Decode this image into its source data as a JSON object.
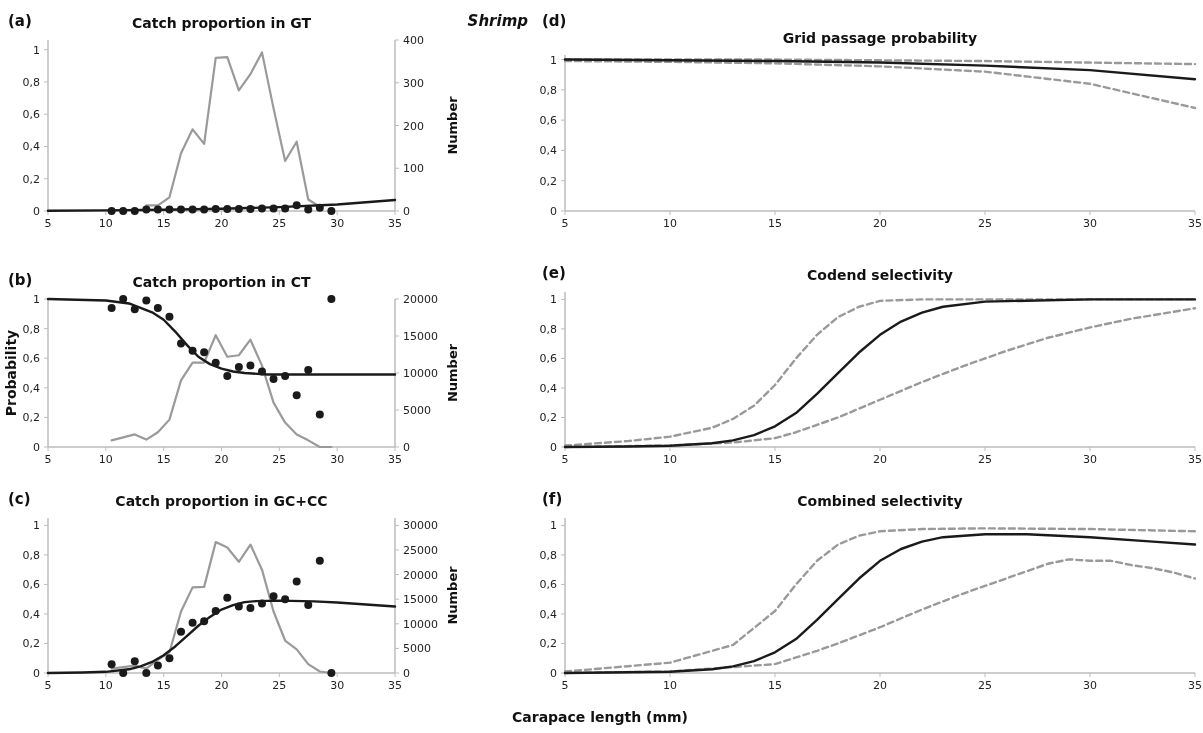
{
  "chart_data": [
    {
      "type": "line",
      "title": "Catch proportion in GT",
      "y2label": "Number",
      "annotations": [
        "(a)"
      ],
      "xlim": [
        5,
        35
      ],
      "xticks": [
        5,
        10,
        15,
        20,
        25,
        30,
        35
      ],
      "ylim": [
        0,
        1.06
      ],
      "yticks": [
        {
          "value": 0,
          "label": "0"
        },
        {
          "value": 0.2,
          "label": "0,2"
        },
        {
          "value": 0.4,
          "label": "0,4"
        },
        {
          "value": 0.6,
          "label": "0,6"
        },
        {
          "value": 0.8,
          "label": "0,8"
        },
        {
          "value": 1,
          "label": "1"
        }
      ],
      "y2lim": [
        0,
        400
      ],
      "y2ticks": [
        0,
        100,
        200,
        300,
        400
      ],
      "series": [
        {
          "axis": "y2",
          "color": "#9a9a9a",
          "x": [
            13.5,
            14.5,
            15.5,
            16.5,
            17.5,
            18.5,
            19.5,
            20.5,
            21.5,
            22.5,
            23.5,
            24.5,
            25.5,
            26.5,
            27.5,
            28.5
          ],
          "values": [
            13,
            13,
            32,
            135,
            191,
            157,
            358,
            360,
            282,
            320,
            371,
            240,
            117,
            162,
            27,
            10
          ]
        },
        {
          "type": "scatter",
          "marker": "circle",
          "color": "#1a1a1a",
          "x": [
            10.5,
            11.5,
            12.5,
            13.5,
            14.5,
            15.5,
            16.5,
            17.5,
            18.5,
            19.5,
            20.5,
            21.5,
            22.5,
            23.5,
            24.5,
            25.5,
            26.5,
            27.5,
            28.5,
            29.5
          ],
          "values": [
            0,
            0,
            0,
            0.01,
            0.01,
            0.01,
            0.01,
            0.01,
            0.01,
            0.012,
            0.012,
            0.012,
            0.012,
            0.015,
            0.015,
            0.015,
            0.035,
            0.01,
            0.02,
            0
          ]
        },
        {
          "color": "#1a1a1a",
          "x": [
            5,
            10,
            15,
            20,
            25,
            30,
            35
          ],
          "values": [
            0.002,
            0.004,
            0.008,
            0.014,
            0.024,
            0.04,
            0.068
          ]
        }
      ]
    },
    {
      "type": "line",
      "title": "Catch proportion in CT",
      "ylabel": "Probability",
      "y2label": "Number",
      "annotations": [
        "(b)"
      ],
      "xlim": [
        5,
        35
      ],
      "xticks": [
        5,
        10,
        15,
        20,
        25,
        30,
        35
      ],
      "ylim": [
        0,
        1
      ],
      "yticks": [
        {
          "value": 0,
          "label": "0"
        },
        {
          "value": 0.2,
          "label": "0,2"
        },
        {
          "value": 0.4,
          "label": "0,4"
        },
        {
          "value": 0.6,
          "label": "0,6"
        },
        {
          "value": 0.8,
          "label": "0,8"
        },
        {
          "value": 1,
          "label": "1"
        }
      ],
      "y2lim": [
        0,
        20000
      ],
      "y2ticks": [
        0,
        5000,
        10000,
        15000,
        20000
      ],
      "series": [
        {
          "axis": "y2",
          "color": "#9a9a9a",
          "x": [
            10.5,
            11.5,
            12.5,
            13.5,
            14.5,
            15.5,
            16.5,
            17.5,
            18.5,
            19.5,
            20.5,
            21.5,
            22.5,
            23.5,
            24.5,
            25.5,
            26.5,
            27.5,
            28.5,
            29.5
          ],
          "values": [
            900,
            1300,
            1700,
            1000,
            2000,
            3700,
            9000,
            11400,
            11400,
            15100,
            12200,
            12400,
            14500,
            11000,
            6000,
            3300,
            1700,
            900,
            0,
            0
          ]
        },
        {
          "type": "scatter",
          "marker": "circle",
          "color": "#1a1a1a",
          "x": [
            10.5,
            11.5,
            12.5,
            13.5,
            14.5,
            15.5,
            16.5,
            17.5,
            18.5,
            19.5,
            20.5,
            21.5,
            22.5,
            23.5,
            24.5,
            25.5,
            26.5,
            27.5,
            28.5,
            29.5
          ],
          "values": [
            0.94,
            1,
            0.93,
            0.99,
            0.94,
            0.88,
            0.7,
            0.65,
            0.64,
            0.57,
            0.48,
            0.54,
            0.55,
            0.51,
            0.46,
            0.48,
            0.35,
            0.52,
            0.22,
            1
          ]
        },
        {
          "color": "#1a1a1a",
          "x": [
            5,
            10,
            12,
            14,
            15,
            16,
            17,
            18,
            19,
            20,
            21,
            22,
            24,
            35
          ],
          "values": [
            1,
            0.99,
            0.97,
            0.91,
            0.86,
            0.78,
            0.69,
            0.61,
            0.56,
            0.53,
            0.51,
            0.5,
            0.49,
            0.49
          ]
        }
      ]
    },
    {
      "type": "line",
      "title": "Catch proportion in GC+CC",
      "xlabel": "Carapace length (mm)",
      "y2label": "Number",
      "annotations": [
        "(c)"
      ],
      "xlim": [
        5,
        35
      ],
      "xticks": [
        5,
        10,
        15,
        20,
        25,
        30,
        35
      ],
      "ylim": [
        0,
        1.05
      ],
      "yticks": [
        {
          "value": 0,
          "label": "0"
        },
        {
          "value": 0.2,
          "label": "0,2"
        },
        {
          "value": 0.4,
          "label": "0,4"
        },
        {
          "value": 0.6,
          "label": "0,6"
        },
        {
          "value": 0.8,
          "label": "0,8"
        },
        {
          "value": 1,
          "label": "1"
        }
      ],
      "y2lim": [
        0,
        31500
      ],
      "y2ticks": [
        0,
        5000,
        10000,
        15000,
        20000,
        25000,
        30000
      ],
      "series": [
        {
          "axis": "y2",
          "color": "#9a9a9a",
          "x": [
            10.5,
            11.5,
            12.5,
            13.5,
            14.5,
            15.5,
            16.5,
            17.5,
            18.5,
            19.5,
            20.5,
            21.5,
            22.5,
            23.5,
            24.5,
            25.5,
            26.5,
            27.5,
            28.5,
            29.5
          ],
          "values": [
            900,
            1200,
            1500,
            900,
            2700,
            4200,
            12500,
            17400,
            17500,
            26600,
            25500,
            22600,
            26100,
            21000,
            12500,
            6600,
            4800,
            1800,
            300,
            0
          ]
        },
        {
          "type": "scatter",
          "marker": "circle",
          "color": "#1a1a1a",
          "x": [
            10.5,
            11.5,
            12.5,
            13.5,
            14.5,
            15.5,
            16.5,
            17.5,
            18.5,
            19.5,
            20.5,
            21.5,
            22.5,
            23.5,
            24.5,
            25.5,
            26.5,
            27.5,
            28.5,
            29.5
          ],
          "values": [
            0.06,
            0,
            0.08,
            0,
            0.05,
            0.1,
            0.28,
            0.34,
            0.35,
            0.42,
            0.51,
            0.45,
            0.44,
            0.47,
            0.52,
            0.5,
            0.62,
            0.46,
            0.76,
            0
          ]
        },
        {
          "color": "#1a1a1a",
          "x": [
            5,
            8,
            10,
            12,
            13,
            14,
            15,
            16,
            17,
            18,
            19,
            20,
            21,
            22,
            23,
            25,
            28,
            30,
            35
          ],
          "values": [
            0,
            0.003,
            0.008,
            0.025,
            0.045,
            0.075,
            0.12,
            0.18,
            0.25,
            0.32,
            0.38,
            0.43,
            0.46,
            0.48,
            0.487,
            0.49,
            0.485,
            0.478,
            0.45
          ]
        }
      ]
    },
    {
      "type": "line",
      "title": "Grid passage probability",
      "annotations": [
        "Shrimp",
        "(d)"
      ],
      "xlim": [
        5,
        35
      ],
      "xticks": [
        5,
        10,
        15,
        20,
        25,
        30,
        35
      ],
      "ylim": [
        0,
        1.03
      ],
      "yticks": [
        {
          "value": 0,
          "label": "0"
        },
        {
          "value": 0.2,
          "label": "0,2"
        },
        {
          "value": 0.4,
          "label": "0,4"
        },
        {
          "value": 0.6,
          "label": "0,6"
        },
        {
          "value": 0.8,
          "label": "0,8"
        },
        {
          "value": 1,
          "label": "1"
        }
      ],
      "series": [
        {
          "line_style": "dashed",
          "color": "#999999",
          "x": [
            5,
            10,
            15,
            20,
            25,
            30,
            35
          ],
          "values": [
            1,
            1,
            1,
            0.995,
            0.99,
            0.98,
            0.97
          ]
        },
        {
          "line_style": "dashed",
          "color": "#999999",
          "x": [
            5,
            10,
            15,
            20,
            25,
            30,
            35
          ],
          "values": [
            0.99,
            0.985,
            0.975,
            0.955,
            0.92,
            0.84,
            0.68
          ]
        },
        {
          "line_style": "solid",
          "color": "#1a1a1a",
          "x": [
            5,
            10,
            15,
            20,
            25,
            30,
            35
          ],
          "values": [
            1,
            0.995,
            0.99,
            0.98,
            0.96,
            0.93,
            0.87
          ]
        }
      ]
    },
    {
      "type": "line",
      "title": "Codend selectivity",
      "annotations": [
        "(e)"
      ],
      "xlim": [
        5,
        35
      ],
      "xticks": [
        5,
        10,
        15,
        20,
        25,
        30,
        35
      ],
      "ylim": [
        0,
        1.05
      ],
      "yticks": [
        {
          "value": 0,
          "label": "0"
        },
        {
          "value": 0.2,
          "label": "0,2"
        },
        {
          "value": 0.4,
          "label": "0,4"
        },
        {
          "value": 0.6,
          "label": "0,6"
        },
        {
          "value": 0.8,
          "label": "0,8"
        },
        {
          "value": 1,
          "label": "1"
        }
      ],
      "series": [
        {
          "line_style": "dashed",
          "color": "#999999",
          "x": [
            5,
            8,
            10,
            12,
            13,
            14,
            15,
            16,
            17,
            18,
            19,
            20,
            22,
            35
          ],
          "values": [
            0.01,
            0.04,
            0.07,
            0.13,
            0.19,
            0.28,
            0.42,
            0.6,
            0.76,
            0.88,
            0.95,
            0.99,
            1,
            1
          ]
        },
        {
          "line_style": "dashed",
          "color": "#999999",
          "x": [
            5,
            10,
            13,
            15,
            16,
            17,
            18,
            20,
            22,
            24,
            26,
            28,
            30,
            32,
            35
          ],
          "values": [
            0,
            0.01,
            0.03,
            0.06,
            0.1,
            0.15,
            0.2,
            0.32,
            0.44,
            0.55,
            0.65,
            0.74,
            0.81,
            0.87,
            0.94
          ]
        },
        {
          "line_style": "solid",
          "color": "#1a1a1a",
          "x": [
            5,
            8,
            10,
            12,
            13,
            14,
            15,
            16,
            17,
            18,
            19,
            20,
            21,
            22,
            23,
            25,
            30,
            35
          ],
          "values": [
            0,
            0.003,
            0.008,
            0.025,
            0.045,
            0.08,
            0.14,
            0.23,
            0.36,
            0.5,
            0.64,
            0.76,
            0.85,
            0.91,
            0.95,
            0.985,
            1,
            1
          ]
        }
      ]
    },
    {
      "type": "line",
      "title": "Combined selectivity",
      "annotations": [
        "(f)"
      ],
      "xlim": [
        5,
        35
      ],
      "xticks": [
        5,
        10,
        15,
        20,
        25,
        30,
        35
      ],
      "ylim": [
        0,
        1.05
      ],
      "yticks": [
        {
          "value": 0,
          "label": "0"
        },
        {
          "value": 0.2,
          "label": "0,2"
        },
        {
          "value": 0.4,
          "label": "0,4"
        },
        {
          "value": 0.6,
          "label": "0,6"
        },
        {
          "value": 0.8,
          "label": "0,8"
        },
        {
          "value": 1,
          "label": "1"
        }
      ],
      "series": [
        {
          "line_style": "dashed",
          "color": "#999999",
          "x": [
            5,
            10,
            13,
            15,
            16,
            17,
            18,
            19,
            20,
            22,
            25,
            30,
            35
          ],
          "values": [
            0.01,
            0.07,
            0.19,
            0.42,
            0.6,
            0.76,
            0.87,
            0.93,
            0.96,
            0.975,
            0.98,
            0.975,
            0.96
          ]
        },
        {
          "line_style": "dashed",
          "color": "#999999",
          "x": [
            5,
            10,
            15,
            17,
            18,
            20,
            22,
            24,
            26,
            28,
            29,
            30,
            31,
            32,
            33,
            34,
            35
          ],
          "values": [
            0,
            0.01,
            0.06,
            0.15,
            0.2,
            0.31,
            0.43,
            0.54,
            0.64,
            0.74,
            0.77,
            0.76,
            0.76,
            0.73,
            0.71,
            0.68,
            0.64
          ]
        },
        {
          "line_style": "solid",
          "color": "#1a1a1a",
          "x": [
            5,
            10,
            12,
            13,
            14,
            15,
            16,
            17,
            18,
            19,
            20,
            21,
            22,
            23,
            25,
            27,
            30,
            33,
            35
          ],
          "values": [
            0,
            0.008,
            0.025,
            0.045,
            0.08,
            0.14,
            0.23,
            0.36,
            0.5,
            0.64,
            0.76,
            0.84,
            0.89,
            0.92,
            0.94,
            0.94,
            0.92,
            0.89,
            0.87
          ]
        }
      ]
    }
  ]
}
